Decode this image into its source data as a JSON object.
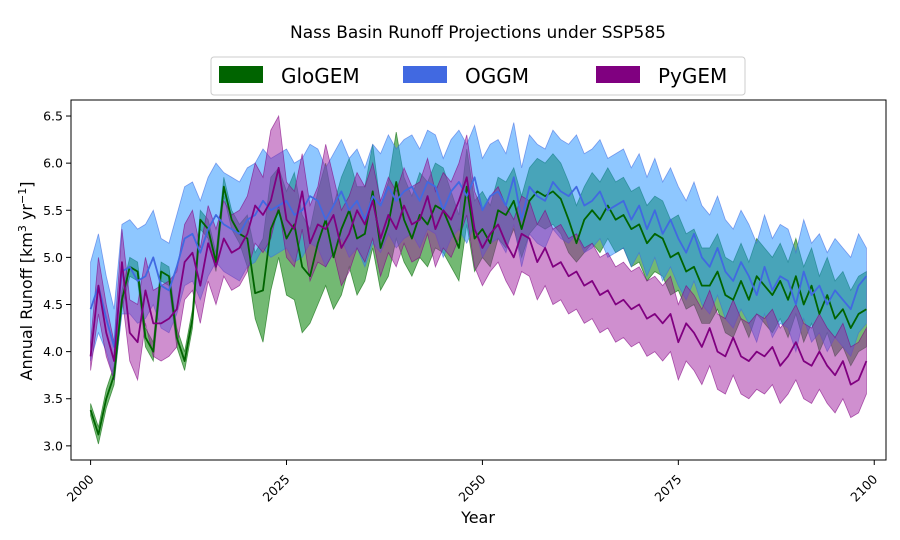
{
  "chart_data": {
    "type": "area",
    "title": "Nass Basin Runoff Projections under SSP585",
    "xlabel": "Year",
    "ylabel": "Annual Runoff [km³ yr⁻¹]",
    "ylabel_parts": {
      "prefix": "Annual Runoff [km",
      "exp1": "3",
      "mid": " yr",
      "exp2": "−1",
      "suffix": "]"
    },
    "xlim": [
      1997.5,
      2101.5
    ],
    "ylim": [
      2.85,
      6.67
    ],
    "xticks": [
      2000,
      2025,
      2050,
      2075,
      2100
    ],
    "xtick_labels": [
      "2000",
      "2025",
      "2050",
      "2075",
      "2100"
    ],
    "yticks": [
      3.0,
      3.5,
      4.0,
      4.5,
      5.0,
      5.5,
      6.0,
      6.5
    ],
    "ytick_labels": [
      "3.0",
      "3.5",
      "4.0",
      "4.5",
      "5.0",
      "5.5",
      "6.0",
      "6.5"
    ],
    "legend_position": "top-center",
    "grid": false,
    "x_start": 2000,
    "x_end": 2099,
    "series": [
      {
        "name": "GloGEM",
        "color": "#006400",
        "fill_color": "#008000",
        "fill_opacity": 0.55,
        "mean": [
          3.38,
          3.12,
          3.5,
          3.75,
          4.55,
          4.9,
          4.85,
          4.15,
          4.0,
          4.85,
          4.8,
          4.15,
          3.9,
          4.35,
          5.4,
          5.3,
          4.95,
          5.75,
          5.4,
          5.25,
          5.2,
          4.62,
          4.65,
          5.3,
          5.5,
          5.2,
          5.35,
          4.9,
          4.8,
          5.15,
          5.4,
          5.0,
          5.3,
          5.5,
          5.2,
          5.25,
          5.7,
          5.1,
          5.35,
          5.8,
          5.4,
          5.2,
          5.45,
          5.35,
          5.55,
          5.5,
          5.3,
          5.1,
          5.75,
          5.2,
          5.3,
          5.15,
          5.5,
          5.45,
          5.6,
          5.3,
          5.6,
          5.7,
          5.65,
          5.7,
          5.62,
          5.4,
          5.15,
          5.4,
          5.5,
          5.4,
          5.55,
          5.4,
          5.45,
          5.3,
          5.35,
          5.15,
          5.25,
          5.2,
          5.0,
          5.05,
          4.85,
          4.9,
          4.7,
          4.7,
          4.85,
          4.6,
          4.55,
          4.75,
          4.55,
          4.8,
          4.7,
          4.6,
          4.75,
          4.55,
          4.8,
          4.5,
          4.7,
          4.4,
          4.6,
          4.35,
          4.45,
          4.25,
          4.4,
          4.45
        ],
        "lower": [
          3.32,
          3.02,
          3.4,
          3.65,
          4.45,
          4.8,
          4.75,
          4.05,
          3.9,
          4.75,
          4.7,
          4.05,
          3.8,
          4.25,
          5.3,
          5.2,
          4.85,
          5.65,
          5.3,
          5.15,
          4.9,
          4.35,
          4.1,
          4.65,
          5.0,
          4.6,
          4.55,
          4.2,
          4.3,
          4.5,
          4.7,
          4.45,
          4.6,
          4.9,
          4.6,
          4.75,
          5.1,
          4.65,
          4.8,
          5.2,
          4.95,
          4.8,
          5.0,
          4.9,
          5.1,
          5.05,
          4.9,
          4.75,
          5.35,
          4.85,
          5.0,
          4.9,
          5.2,
          5.1,
          5.3,
          5.0,
          5.25,
          5.35,
          5.3,
          5.35,
          5.25,
          5.05,
          4.95,
          5.05,
          5.15,
          5.05,
          5.2,
          5.05,
          5.1,
          4.9,
          4.95,
          4.75,
          4.85,
          4.8,
          4.6,
          4.65,
          4.45,
          4.5,
          4.3,
          4.3,
          4.45,
          4.2,
          4.15,
          4.35,
          4.15,
          4.4,
          4.3,
          4.2,
          4.35,
          4.15,
          4.4,
          4.1,
          4.3,
          4.0,
          4.2,
          3.95,
          4.05,
          3.85,
          4.0,
          4.05
        ],
        "upper": [
          3.45,
          3.2,
          3.6,
          3.85,
          4.65,
          5.0,
          4.95,
          4.25,
          4.1,
          4.95,
          4.9,
          4.25,
          4.0,
          4.45,
          5.5,
          5.4,
          5.05,
          5.85,
          5.5,
          5.35,
          5.45,
          5.05,
          5.2,
          5.85,
          5.95,
          5.7,
          5.9,
          5.45,
          5.3,
          5.7,
          6.0,
          5.55,
          5.85,
          6.05,
          5.75,
          5.75,
          6.2,
          5.55,
          5.8,
          6.33,
          5.85,
          5.65,
          5.9,
          5.8,
          6.0,
          5.95,
          5.7,
          5.45,
          6.15,
          5.6,
          5.7,
          5.55,
          5.85,
          5.8,
          5.95,
          5.65,
          5.95,
          6.05,
          6.0,
          6.1,
          6.0,
          5.8,
          5.55,
          5.75,
          5.9,
          5.8,
          5.95,
          5.8,
          5.85,
          5.7,
          5.75,
          5.55,
          5.65,
          5.6,
          5.4,
          5.45,
          5.25,
          5.3,
          5.1,
          5.1,
          5.25,
          5.0,
          4.95,
          5.15,
          4.95,
          5.2,
          5.1,
          5.0,
          5.15,
          4.95,
          5.2,
          4.9,
          5.1,
          4.8,
          5.0,
          4.75,
          4.85,
          4.65,
          4.8,
          4.85
        ]
      },
      {
        "name": "OGGM",
        "color": "#4169e1",
        "fill_color": "#1e90ff",
        "fill_opacity": 0.5,
        "mean": [
          4.45,
          4.7,
          4.35,
          4.05,
          4.85,
          4.9,
          4.75,
          4.8,
          5.0,
          4.7,
          4.65,
          4.9,
          5.2,
          5.25,
          5.05,
          5.3,
          5.45,
          5.35,
          5.3,
          5.25,
          5.4,
          5.45,
          5.6,
          5.5,
          5.55,
          5.6,
          5.45,
          5.5,
          5.65,
          5.6,
          5.4,
          5.55,
          5.7,
          5.5,
          5.6,
          5.4,
          5.65,
          5.55,
          5.75,
          5.6,
          5.7,
          5.75,
          5.6,
          5.8,
          5.75,
          5.5,
          5.7,
          5.8,
          5.65,
          5.85,
          5.5,
          5.65,
          5.7,
          5.55,
          5.85,
          5.4,
          5.75,
          5.65,
          5.6,
          5.8,
          5.7,
          5.65,
          5.75,
          5.55,
          5.6,
          5.7,
          5.5,
          5.55,
          5.6,
          5.4,
          5.55,
          5.3,
          5.5,
          5.25,
          5.4,
          5.2,
          5.05,
          5.25,
          5.0,
          4.9,
          5.1,
          4.85,
          4.75,
          4.95,
          4.8,
          4.6,
          4.9,
          4.65,
          4.8,
          4.75,
          4.5,
          4.85,
          4.6,
          4.7,
          4.5,
          4.65,
          4.55,
          4.45,
          4.7,
          4.8
        ],
        "lower": [
          3.9,
          4.2,
          4.0,
          3.7,
          4.4,
          4.4,
          4.3,
          4.35,
          4.5,
          4.25,
          4.2,
          4.4,
          4.7,
          4.75,
          4.55,
          4.8,
          4.95,
          4.85,
          4.8,
          4.75,
          4.9,
          4.95,
          5.1,
          5.0,
          5.05,
          5.1,
          4.95,
          5.0,
          5.15,
          5.1,
          4.9,
          5.05,
          5.2,
          5.0,
          5.1,
          4.9,
          5.15,
          5.05,
          5.25,
          5.1,
          5.2,
          5.25,
          5.1,
          5.3,
          5.25,
          5.0,
          5.2,
          5.3,
          5.15,
          5.35,
          5.0,
          5.15,
          5.2,
          5.05,
          5.35,
          4.9,
          5.25,
          5.15,
          5.1,
          5.3,
          5.2,
          5.15,
          5.25,
          5.05,
          5.1,
          5.2,
          5.0,
          5.05,
          5.1,
          4.9,
          5.05,
          4.8,
          5.0,
          4.75,
          4.9,
          4.7,
          4.55,
          4.75,
          4.5,
          4.4,
          4.6,
          4.35,
          4.25,
          4.45,
          4.3,
          4.1,
          4.4,
          4.15,
          4.3,
          4.25,
          4.0,
          4.35,
          4.1,
          4.2,
          4.0,
          4.15,
          4.05,
          3.95,
          4.2,
          4.3
        ],
        "upper": [
          4.95,
          5.25,
          4.8,
          4.45,
          5.35,
          5.4,
          5.3,
          5.35,
          5.5,
          5.2,
          5.15,
          5.45,
          5.75,
          5.8,
          5.6,
          5.85,
          6.0,
          5.9,
          5.85,
          5.8,
          5.95,
          6.0,
          6.15,
          6.05,
          6.1,
          6.15,
          6.0,
          6.05,
          6.2,
          6.15,
          5.95,
          6.1,
          6.25,
          6.05,
          6.15,
          5.95,
          6.2,
          6.1,
          6.3,
          6.15,
          6.25,
          6.3,
          6.15,
          6.35,
          6.3,
          6.05,
          6.25,
          6.35,
          6.2,
          6.4,
          6.05,
          6.2,
          6.25,
          6.1,
          6.43,
          5.95,
          6.3,
          6.2,
          6.15,
          6.35,
          6.25,
          6.2,
          6.3,
          6.1,
          6.15,
          6.25,
          6.05,
          6.1,
          6.15,
          5.95,
          6.1,
          5.85,
          6.05,
          5.8,
          5.95,
          5.75,
          5.6,
          5.8,
          5.55,
          5.45,
          5.65,
          5.4,
          5.3,
          5.5,
          5.35,
          5.15,
          5.45,
          5.2,
          5.35,
          5.3,
          5.05,
          5.4,
          5.15,
          5.25,
          5.05,
          5.2,
          5.1,
          5.0,
          5.25,
          5.1
        ]
      },
      {
        "name": "PyGEM",
        "color": "#800080",
        "fill_color": "#a020a0",
        "fill_opacity": 0.5,
        "mean": [
          3.95,
          4.7,
          4.2,
          3.9,
          4.95,
          4.2,
          4.1,
          4.65,
          4.3,
          4.3,
          4.35,
          4.45,
          4.95,
          5.05,
          4.7,
          5.15,
          4.9,
          5.2,
          5.05,
          5.1,
          5.25,
          5.55,
          5.45,
          5.6,
          5.95,
          5.4,
          5.3,
          5.7,
          5.15,
          5.35,
          5.3,
          5.45,
          5.1,
          5.25,
          5.5,
          5.35,
          5.6,
          5.2,
          5.45,
          5.3,
          5.55,
          5.35,
          5.4,
          5.65,
          5.3,
          5.5,
          5.4,
          5.6,
          5.85,
          5.3,
          5.1,
          5.25,
          5.35,
          5.15,
          5.0,
          5.25,
          5.2,
          4.95,
          5.1,
          4.9,
          4.95,
          4.8,
          4.85,
          4.7,
          4.75,
          4.6,
          4.65,
          4.5,
          4.55,
          4.45,
          4.5,
          4.35,
          4.4,
          4.3,
          4.4,
          4.1,
          4.3,
          4.2,
          4.05,
          4.25,
          4.0,
          3.95,
          4.15,
          3.95,
          3.9,
          4.0,
          3.95,
          4.05,
          3.85,
          3.95,
          4.1,
          3.9,
          3.85,
          4.0,
          3.85,
          3.75,
          3.9,
          3.65,
          3.7,
          3.9
        ],
        "lower": [
          3.8,
          4.4,
          3.95,
          3.7,
          4.6,
          3.9,
          3.7,
          4.3,
          3.95,
          3.9,
          3.95,
          4.05,
          4.55,
          4.65,
          4.3,
          4.75,
          4.5,
          4.8,
          4.65,
          4.7,
          4.85,
          5.15,
          5.05,
          5.2,
          5.55,
          5.0,
          4.9,
          5.3,
          4.75,
          4.95,
          4.9,
          5.05,
          4.7,
          4.85,
          5.1,
          4.95,
          5.2,
          4.8,
          5.05,
          4.9,
          5.15,
          4.95,
          5.0,
          5.25,
          4.9,
          5.1,
          5.0,
          5.2,
          5.45,
          4.9,
          4.7,
          4.85,
          4.95,
          4.75,
          4.6,
          4.85,
          4.8,
          4.55,
          4.7,
          4.5,
          4.55,
          4.4,
          4.45,
          4.3,
          4.35,
          4.2,
          4.25,
          4.1,
          4.15,
          4.05,
          4.1,
          3.95,
          4.0,
          3.9,
          4.0,
          3.7,
          3.9,
          3.8,
          3.65,
          3.85,
          3.6,
          3.55,
          3.75,
          3.55,
          3.5,
          3.6,
          3.55,
          3.65,
          3.45,
          3.55,
          3.7,
          3.5,
          3.45,
          3.6,
          3.45,
          3.35,
          3.5,
          3.3,
          3.35,
          3.55
        ],
        "upper": [
          4.1,
          5.0,
          4.5,
          4.1,
          5.3,
          4.55,
          4.5,
          5.0,
          4.65,
          4.7,
          4.75,
          4.85,
          5.35,
          5.5,
          5.1,
          5.55,
          5.3,
          5.6,
          5.45,
          5.5,
          5.65,
          6.0,
          5.85,
          6.35,
          6.5,
          5.8,
          5.7,
          6.1,
          5.55,
          5.75,
          6.2,
          5.85,
          5.5,
          5.65,
          5.9,
          5.75,
          6.0,
          5.6,
          5.85,
          5.7,
          5.95,
          5.75,
          5.8,
          6.05,
          5.7,
          5.9,
          5.8,
          6.0,
          6.3,
          5.7,
          5.5,
          5.65,
          5.75,
          5.55,
          5.4,
          5.65,
          5.6,
          5.35,
          5.5,
          5.3,
          5.35,
          5.2,
          5.25,
          5.1,
          5.15,
          5.0,
          5.05,
          4.9,
          4.95,
          4.85,
          4.9,
          4.75,
          4.8,
          4.7,
          4.8,
          4.5,
          4.7,
          4.6,
          4.45,
          4.65,
          4.4,
          4.35,
          4.55,
          4.35,
          4.3,
          4.4,
          4.35,
          4.45,
          4.25,
          4.35,
          4.5,
          4.3,
          4.25,
          4.4,
          4.25,
          4.15,
          4.3,
          4.05,
          4.1,
          4.25
        ]
      }
    ]
  }
}
